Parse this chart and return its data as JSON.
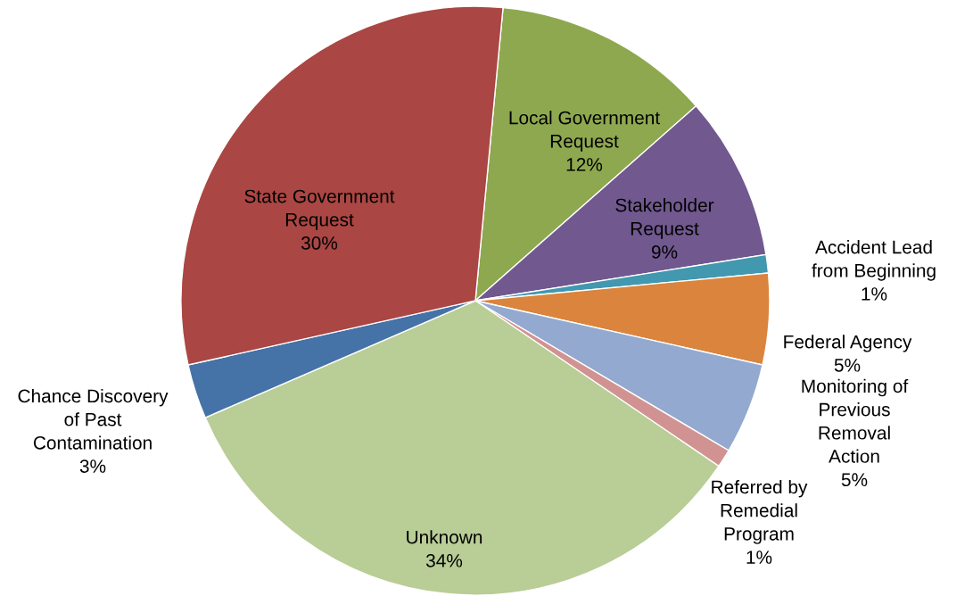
{
  "chart_data": {
    "type": "pie",
    "categories": [
      "Local Government\nRequest",
      "Stakeholder\nRequest",
      "Accident Lead\nfrom Beginning",
      "Federal Agency",
      "Monitoring of\nPrevious\nRemoval\nAction",
      "Referred by\nRemedial\nProgram",
      "Unknown",
      "Chance Discovery\nof Past\nContamination",
      "State Government\nRequest"
    ],
    "values": [
      12,
      9,
      1,
      5,
      5,
      1,
      34,
      3,
      30
    ],
    "value_labels": [
      "12%",
      "9%",
      "1%",
      "5%",
      "5%",
      "1%",
      "34%",
      "3%",
      "30%"
    ],
    "colors": [
      "#8ea84f",
      "#71588f",
      "#4198af",
      "#db843d",
      "#93a9cf",
      "#d19392",
      "#b9cd96",
      "#4572a7",
      "#aa4643"
    ],
    "legend": false
  }
}
